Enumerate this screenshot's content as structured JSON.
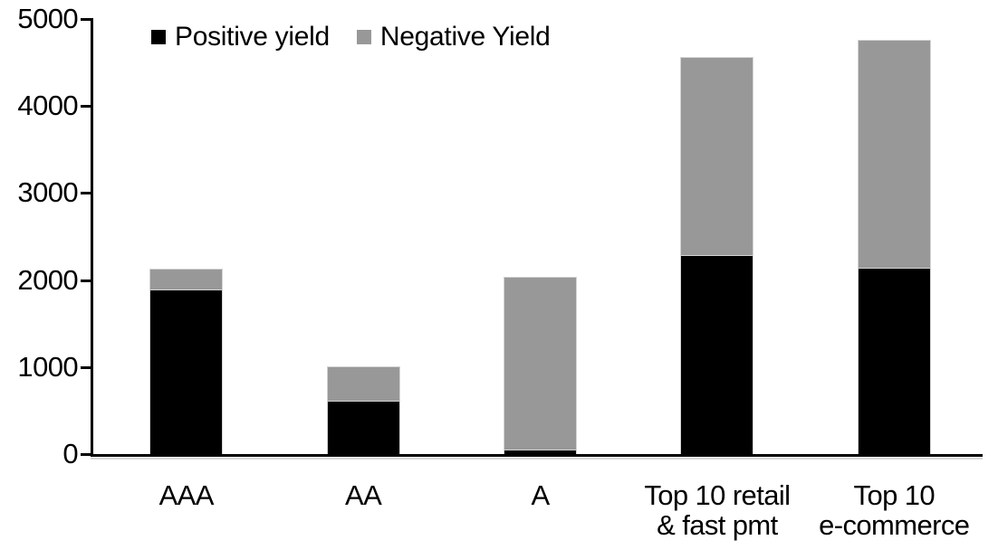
{
  "chart_data": {
    "type": "bar",
    "stacked": true,
    "title": "",
    "categories": [
      "AAA",
      "AA",
      "A",
      "Top 10 retail\n& fast pmt",
      "Top 10\ne-commerce"
    ],
    "series": [
      {
        "name": "Positive yield",
        "color": "#000000",
        "values": [
          1890,
          615,
          50,
          2290,
          2140
        ]
      },
      {
        "name": "Negative Yield",
        "color": "#989898",
        "values": [
          235,
          385,
          1980,
          2260,
          2610
        ]
      }
    ],
    "ylim": [
      0,
      5000
    ],
    "yticks": [
      0,
      1000,
      2000,
      3000,
      4000,
      5000
    ],
    "xlabel": "",
    "ylabel": "",
    "grid": false,
    "legend_position": "top-left",
    "colors": {
      "axis": "#000000",
      "background": "#ffffff",
      "text": "#000000"
    }
  }
}
